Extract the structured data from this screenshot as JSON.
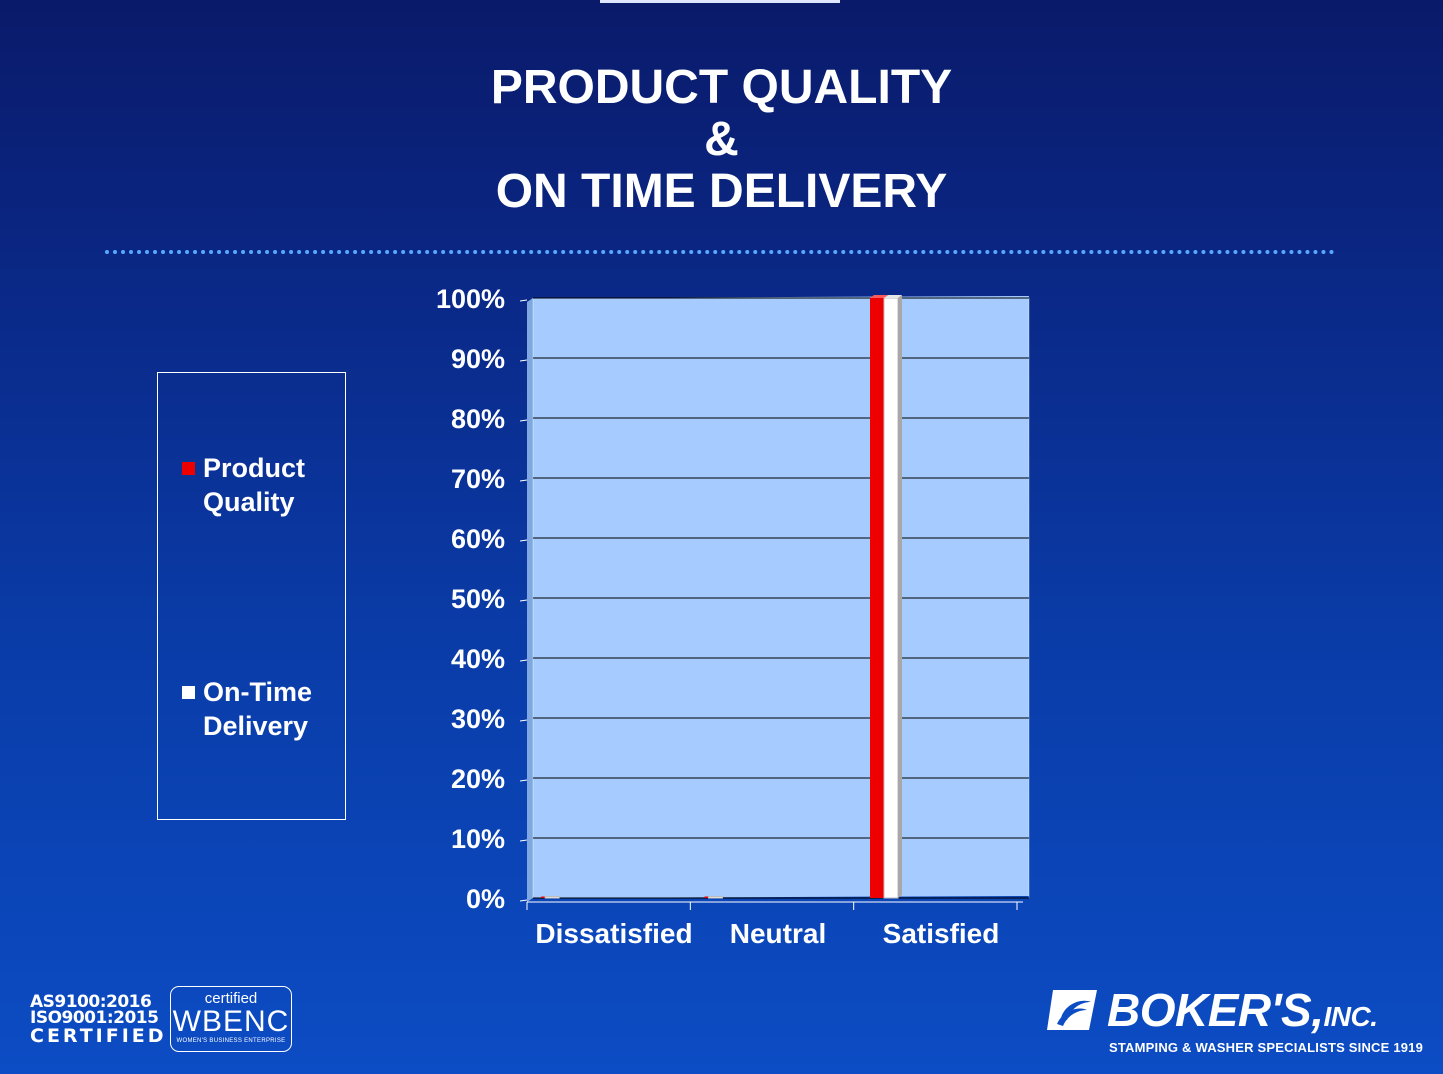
{
  "title_lines": [
    "PRODUCT QUALITY",
    "&",
    "ON TIME DELIVERY"
  ],
  "colors": {
    "plot_bg": "#a6ccff",
    "product_quality": "#ee0000",
    "on_time_delivery": "#ffffff",
    "divider": "#58a8ff"
  },
  "chart_data": {
    "type": "bar",
    "categories": [
      "Dissatisfied",
      "Neutral",
      "Satisfied"
    ],
    "series": [
      {
        "name": "Product Quality",
        "values": [
          0,
          0,
          100
        ]
      },
      {
        "name": "On-Time Delivery",
        "values": [
          0,
          0,
          100
        ]
      }
    ],
    "yticks": [
      "0%",
      "10%",
      "20%",
      "30%",
      "40%",
      "50%",
      "60%",
      "70%",
      "80%",
      "90%",
      "100%"
    ],
    "ylim": [
      0,
      100
    ],
    "grid": true,
    "legend": "left"
  },
  "legend": [
    {
      "label": "Product Quality"
    },
    {
      "label": "On-Time Delivery"
    }
  ],
  "footer": {
    "cert_lines": [
      "AS9100:2016",
      "ISO9001:2015",
      "CERTIFIED"
    ],
    "wbenc": {
      "top": "certified",
      "main": "WBENC",
      "sub": "WOMEN'S BUSINESS ENTERPRISE"
    },
    "logo": {
      "name": "BOKER'S,",
      "inc": "INC.",
      "tagline": "STAMPING & WASHER SPECIALISTS  SINCE 1919"
    }
  }
}
